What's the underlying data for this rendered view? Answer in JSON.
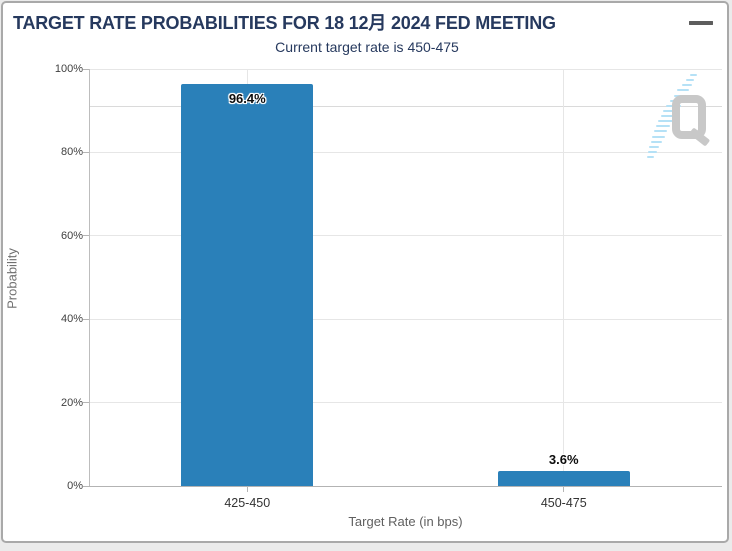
{
  "header": {
    "menu_icon": "hamburger"
  },
  "chart_data": {
    "type": "bar",
    "title": "TARGET RATE PROBABILITIES FOR 18 12月 2024 FED MEETING",
    "subtitle": "Current target rate is 450-475",
    "categories": [
      "425-450",
      "450-475"
    ],
    "values": [
      96.4,
      3.6
    ],
    "value_labels": [
      "96.4%",
      "3.6%"
    ],
    "xlabel": "Target Rate (in bps)",
    "ylabel": "Probability",
    "ylim": [
      0,
      100
    ],
    "yticks": [
      "0%",
      "20%",
      "40%",
      "60%",
      "80%",
      "100%"
    ],
    "grid": true,
    "legend": "none",
    "bar_color": "#2a80b9",
    "title_color": "#26395e"
  },
  "watermark": {
    "letter": "Q"
  }
}
